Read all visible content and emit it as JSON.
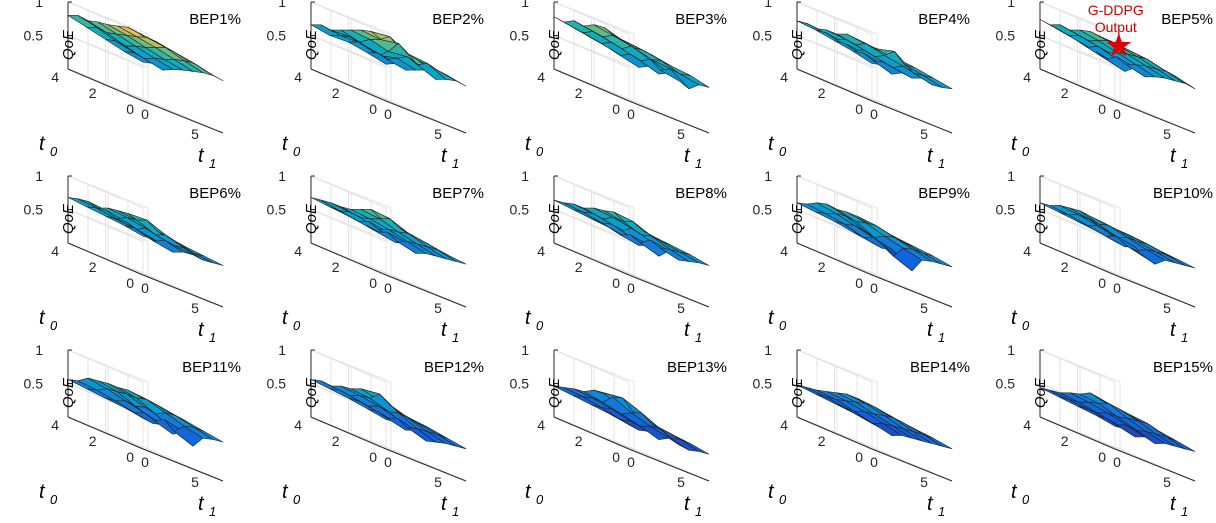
{
  "chart_data": {
    "type": "surface",
    "axes": {
      "x_label": "t",
      "x_label_sub": "1",
      "y_label": "t",
      "y_label_sub": "0",
      "z_label": "QoE",
      "x_ticks": [
        "0",
        "5"
      ],
      "y_ticks": [
        "0",
        "2",
        "4"
      ],
      "z_ticks": [
        "0.5",
        "1"
      ],
      "x_range": [
        0,
        8
      ],
      "y_range": [
        0,
        4
      ],
      "z_range": [
        0,
        1
      ],
      "grid": true,
      "colormap": "parula"
    },
    "annotation": {
      "panel_index": 4,
      "lines": [
        "G-DDPG",
        "Output"
      ],
      "marker": "star",
      "color": "#dd0000",
      "x": 6,
      "y": 3,
      "z": 0.82
    },
    "panels": [
      {
        "title": "BEP1%",
        "z": [
          [
            0.58,
            0.62,
            0.58,
            0.65,
            0.7,
            0.74,
            0.78,
            0.8,
            0.78
          ],
          [
            0.62,
            0.66,
            0.63,
            0.7,
            0.74,
            0.8,
            0.84,
            0.86,
            0.82
          ],
          [
            0.68,
            0.72,
            0.7,
            0.76,
            0.8,
            0.86,
            0.92,
            0.9,
            0.86
          ],
          [
            0.74,
            0.8,
            0.78,
            0.82,
            0.86,
            0.9,
            0.95,
            0.94,
            0.9
          ],
          [
            0.8,
            0.86,
            0.84,
            0.88,
            0.9,
            0.94,
            0.98,
            0.96,
            0.92
          ]
        ]
      },
      {
        "title": "BEP2%",
        "z": [
          [
            0.55,
            0.62,
            0.58,
            0.64,
            0.7,
            0.62,
            0.68,
            0.72,
            0.7
          ],
          [
            0.6,
            0.66,
            0.62,
            0.7,
            0.78,
            0.72,
            0.8,
            0.76,
            0.74
          ],
          [
            0.64,
            0.7,
            0.66,
            0.62,
            0.74,
            0.92,
            0.82,
            0.78,
            0.72
          ],
          [
            0.62,
            0.68,
            0.72,
            0.7,
            0.8,
            0.86,
            0.96,
            0.84,
            0.8
          ],
          [
            0.66,
            0.72,
            0.7,
            0.76,
            0.82,
            0.88,
            0.92,
            0.86,
            0.82
          ]
        ]
      },
      {
        "title": "BEP3%",
        "z": [
          [
            0.6,
            0.56,
            0.64,
            0.58,
            0.66,
            0.6,
            0.54,
            0.66,
            0.68
          ],
          [
            0.66,
            0.62,
            0.7,
            0.66,
            0.74,
            0.64,
            0.72,
            0.7,
            0.74
          ],
          [
            0.7,
            0.68,
            0.76,
            0.72,
            0.82,
            0.78,
            0.74,
            0.78,
            0.76
          ],
          [
            0.74,
            0.72,
            0.8,
            0.78,
            0.86,
            0.84,
            0.8,
            0.82,
            0.8
          ],
          [
            0.78,
            0.76,
            0.84,
            0.82,
            0.9,
            0.92,
            0.86,
            0.84,
            0.82
          ]
        ]
      },
      {
        "title": "BEP4%",
        "z": [
          [
            0.56,
            0.6,
            0.52,
            0.6,
            0.58,
            0.64,
            0.6,
            0.62,
            0.66
          ],
          [
            0.62,
            0.66,
            0.6,
            0.64,
            0.62,
            0.7,
            0.66,
            0.68,
            0.7
          ],
          [
            0.66,
            0.68,
            0.64,
            0.7,
            0.66,
            0.74,
            0.86,
            0.72,
            0.74
          ],
          [
            0.7,
            0.72,
            0.68,
            0.74,
            0.72,
            0.8,
            0.78,
            0.76,
            0.76
          ],
          [
            0.72,
            0.74,
            0.72,
            0.76,
            0.76,
            0.82,
            0.8,
            0.78,
            0.78
          ]
        ]
      },
      {
        "title": "BEP5%",
        "z": [
          [
            0.56,
            0.5,
            0.62,
            0.54,
            0.6,
            0.64,
            0.66,
            0.68,
            0.66
          ],
          [
            0.62,
            0.56,
            0.66,
            0.6,
            0.66,
            0.7,
            0.72,
            0.74,
            0.72
          ],
          [
            0.66,
            0.62,
            0.7,
            0.66,
            0.72,
            0.76,
            0.78,
            0.8,
            0.76
          ],
          [
            0.7,
            0.68,
            0.74,
            0.72,
            0.78,
            0.84,
            0.82,
            0.82,
            0.8
          ],
          [
            0.74,
            0.72,
            0.78,
            0.76,
            0.82,
            0.86,
            0.84,
            0.84,
            0.82
          ]
        ]
      },
      {
        "title": "BEP6%",
        "z": [
          [
            0.58,
            0.6,
            0.56,
            0.52,
            0.58,
            0.6,
            0.58,
            0.6,
            0.62
          ],
          [
            0.62,
            0.64,
            0.6,
            0.56,
            0.64,
            0.62,
            0.64,
            0.62,
            0.64
          ],
          [
            0.64,
            0.66,
            0.68,
            0.62,
            0.7,
            0.66,
            0.72,
            0.68,
            0.66
          ],
          [
            0.66,
            0.7,
            0.72,
            0.66,
            0.74,
            0.76,
            0.82,
            0.72,
            0.68
          ],
          [
            0.68,
            0.72,
            0.74,
            0.7,
            0.76,
            0.78,
            0.8,
            0.74,
            0.7
          ]
        ]
      },
      {
        "title": "BEP7%",
        "z": [
          [
            0.58,
            0.54,
            0.6,
            0.5,
            0.56,
            0.58,
            0.6,
            0.62,
            0.64
          ],
          [
            0.62,
            0.58,
            0.64,
            0.56,
            0.62,
            0.64,
            0.66,
            0.68,
            0.66
          ],
          [
            0.64,
            0.62,
            0.68,
            0.62,
            0.68,
            0.7,
            0.74,
            0.72,
            0.7
          ],
          [
            0.66,
            0.66,
            0.7,
            0.68,
            0.72,
            0.78,
            0.84,
            0.76,
            0.72
          ],
          [
            0.68,
            0.7,
            0.72,
            0.72,
            0.74,
            0.8,
            0.86,
            0.78,
            0.74
          ]
        ]
      },
      {
        "title": "BEP8%",
        "z": [
          [
            0.54,
            0.5,
            0.56,
            0.46,
            0.6,
            0.52,
            0.56,
            0.6,
            0.62
          ],
          [
            0.58,
            0.54,
            0.6,
            0.54,
            0.64,
            0.58,
            0.62,
            0.64,
            0.66
          ],
          [
            0.6,
            0.6,
            0.64,
            0.6,
            0.7,
            0.66,
            0.7,
            0.68,
            0.68
          ],
          [
            0.62,
            0.64,
            0.68,
            0.66,
            0.74,
            0.74,
            0.8,
            0.72,
            0.7
          ],
          [
            0.64,
            0.66,
            0.7,
            0.7,
            0.76,
            0.78,
            0.82,
            0.74,
            0.72
          ]
        ]
      },
      {
        "title": "BEP9%",
        "z": [
          [
            0.48,
            0.46,
            0.5,
            0.42,
            0.3,
            0.52,
            0.56,
            0.58,
            0.6
          ],
          [
            0.52,
            0.5,
            0.56,
            0.5,
            0.4,
            0.58,
            0.62,
            0.62,
            0.64
          ],
          [
            0.56,
            0.58,
            0.62,
            0.6,
            0.56,
            0.64,
            0.68,
            0.66,
            0.66
          ],
          [
            0.58,
            0.62,
            0.68,
            0.7,
            0.68,
            0.72,
            0.74,
            0.7,
            0.68
          ],
          [
            0.6,
            0.64,
            0.72,
            0.76,
            0.74,
            0.76,
            0.76,
            0.72,
            0.7
          ]
        ]
      },
      {
        "title": "BEP10%",
        "z": [
          [
            0.5,
            0.48,
            0.54,
            0.44,
            0.4,
            0.52,
            0.54,
            0.56,
            0.58
          ],
          [
            0.54,
            0.52,
            0.58,
            0.5,
            0.48,
            0.56,
            0.58,
            0.6,
            0.6
          ],
          [
            0.56,
            0.56,
            0.62,
            0.58,
            0.56,
            0.62,
            0.62,
            0.64,
            0.62
          ],
          [
            0.58,
            0.6,
            0.66,
            0.66,
            0.64,
            0.68,
            0.66,
            0.66,
            0.64
          ],
          [
            0.6,
            0.62,
            0.68,
            0.7,
            0.72,
            0.7,
            0.68,
            0.66,
            0.64
          ]
        ]
      },
      {
        "title": "BEP11%",
        "z": [
          [
            0.46,
            0.44,
            0.48,
            0.4,
            0.5,
            0.34,
            0.52,
            0.56,
            0.58
          ],
          [
            0.5,
            0.48,
            0.54,
            0.48,
            0.56,
            0.44,
            0.58,
            0.62,
            0.62
          ],
          [
            0.52,
            0.54,
            0.6,
            0.58,
            0.62,
            0.58,
            0.66,
            0.68,
            0.66
          ],
          [
            0.54,
            0.58,
            0.66,
            0.68,
            0.7,
            0.7,
            0.74,
            0.72,
            0.68
          ],
          [
            0.56,
            0.6,
            0.7,
            0.72,
            0.74,
            0.74,
            0.76,
            0.74,
            0.7
          ]
        ]
      },
      {
        "title": "BEP12%",
        "z": [
          [
            0.44,
            0.46,
            0.4,
            0.46,
            0.36,
            0.4,
            0.44,
            0.46,
            0.48
          ],
          [
            0.48,
            0.5,
            0.46,
            0.52,
            0.44,
            0.48,
            0.5,
            0.52,
            0.52
          ],
          [
            0.52,
            0.54,
            0.52,
            0.58,
            0.56,
            0.6,
            0.58,
            0.56,
            0.56
          ],
          [
            0.54,
            0.58,
            0.56,
            0.62,
            0.64,
            0.76,
            0.66,
            0.6,
            0.58
          ],
          [
            0.56,
            0.6,
            0.58,
            0.64,
            0.66,
            0.72,
            0.68,
            0.62,
            0.6
          ]
        ]
      },
      {
        "title": "BEP13%",
        "z": [
          [
            0.36,
            0.34,
            0.38,
            0.32,
            0.4,
            0.36,
            0.34,
            0.38,
            0.4
          ],
          [
            0.4,
            0.38,
            0.42,
            0.4,
            0.46,
            0.48,
            0.4,
            0.44,
            0.44
          ],
          [
            0.42,
            0.44,
            0.48,
            0.46,
            0.54,
            0.6,
            0.5,
            0.48,
            0.46
          ],
          [
            0.44,
            0.48,
            0.52,
            0.52,
            0.66,
            0.7,
            0.56,
            0.5,
            0.48
          ],
          [
            0.46,
            0.5,
            0.54,
            0.56,
            0.64,
            0.66,
            0.58,
            0.52,
            0.5
          ]
        ]
      },
      {
        "title": "BEP14%",
        "z": [
          [
            0.38,
            0.36,
            0.32,
            0.38,
            0.4,
            0.42,
            0.44,
            0.46,
            0.48
          ],
          [
            0.42,
            0.4,
            0.38,
            0.44,
            0.46,
            0.48,
            0.5,
            0.52,
            0.52
          ],
          [
            0.44,
            0.44,
            0.44,
            0.5,
            0.52,
            0.56,
            0.58,
            0.56,
            0.54
          ],
          [
            0.46,
            0.48,
            0.5,
            0.54,
            0.58,
            0.62,
            0.62,
            0.58,
            0.56
          ],
          [
            0.48,
            0.5,
            0.52,
            0.56,
            0.6,
            0.64,
            0.64,
            0.6,
            0.58
          ]
        ]
      },
      {
        "title": "BEP15%",
        "z": [
          [
            0.34,
            0.36,
            0.3,
            0.36,
            0.32,
            0.38,
            0.4,
            0.42,
            0.44
          ],
          [
            0.38,
            0.4,
            0.36,
            0.42,
            0.4,
            0.44,
            0.46,
            0.48,
            0.48
          ],
          [
            0.4,
            0.42,
            0.42,
            0.48,
            0.48,
            0.52,
            0.54,
            0.56,
            0.52
          ],
          [
            0.42,
            0.44,
            0.46,
            0.52,
            0.56,
            0.62,
            0.6,
            0.58,
            0.54
          ],
          [
            0.44,
            0.46,
            0.48,
            0.54,
            0.58,
            0.66,
            0.62,
            0.6,
            0.56
          ]
        ]
      }
    ]
  }
}
